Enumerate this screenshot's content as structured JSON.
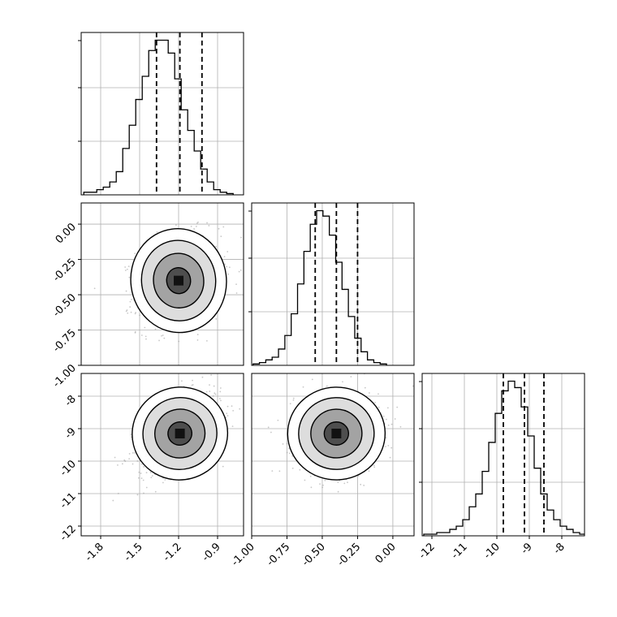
{
  "chart_data": {
    "type": "corner",
    "description_free": true,
    "grid": true,
    "parameters": [
      {
        "range": [
          -1.95,
          -0.7
        ],
        "ticks": [
          "-1.8",
          "-1.5",
          "-1.2",
          "-0.9"
        ],
        "tick_values": [
          -1.8,
          -1.5,
          -1.2,
          -0.9
        ],
        "quantiles": [
          -1.37,
          -1.19,
          -1.02
        ],
        "hist_start": -1.93,
        "hist_step": 0.05,
        "hist": [
          1,
          1,
          2,
          3,
          5,
          9,
          18,
          27,
          37,
          46,
          56,
          60,
          60,
          55,
          45,
          33,
          25,
          17,
          10,
          5,
          2,
          1,
          0.5
        ]
      },
      {
        "range": [
          -1.0,
          0.15
        ],
        "ticks": [
          "-1.00",
          "-0.75",
          "-0.50",
          "-0.25",
          "0.00"
        ],
        "tick_values": [
          -1.0,
          -0.75,
          -0.5,
          -0.25,
          0.0
        ],
        "quantiles": [
          -0.55,
          -0.4,
          -0.25
        ],
        "hist_start": -0.99,
        "hist_step": 0.045,
        "hist": [
          0.5,
          1,
          2,
          3,
          6,
          11,
          19,
          30,
          42,
          52,
          57,
          55,
          48,
          38,
          28,
          18,
          10,
          5,
          2,
          1,
          0.5
        ]
      },
      {
        "range": [
          -12.3,
          -7.3
        ],
        "ticks": [
          "-12",
          "-11",
          "-10",
          "-9",
          "-8"
        ],
        "tick_values": [
          -12,
          -11,
          -10,
          -9,
          -8
        ],
        "quantiles": [
          -9.8,
          -9.15,
          -8.55
        ],
        "hist_start": -12.25,
        "hist_step": 0.2,
        "hist": [
          0.5,
          0.5,
          1,
          1,
          2,
          3,
          5,
          9,
          13,
          20,
          29,
          38,
          45,
          48,
          46,
          40,
          31,
          21,
          13,
          8,
          5,
          3,
          2,
          1,
          0.5
        ]
      }
    ],
    "joint": [
      {
        "xparam": 0,
        "yparam": 1,
        "mean": [
          -1.2,
          -0.4
        ],
        "sd": [
          0.16,
          0.16
        ],
        "rho": 0.2
      },
      {
        "xparam": 0,
        "yparam": 2,
        "mean": [
          -1.19,
          -9.15
        ],
        "sd": [
          0.16,
          0.62
        ],
        "rho": 0.45
      },
      {
        "xparam": 1,
        "yparam": 2,
        "mean": [
          -0.4,
          -9.15
        ],
        "sd": [
          0.15,
          0.62
        ],
        "rho": 0.05
      }
    ],
    "colors": {
      "line": "#000000",
      "grid": "#b0b0b0",
      "scatter": "#9a9a9a"
    }
  }
}
